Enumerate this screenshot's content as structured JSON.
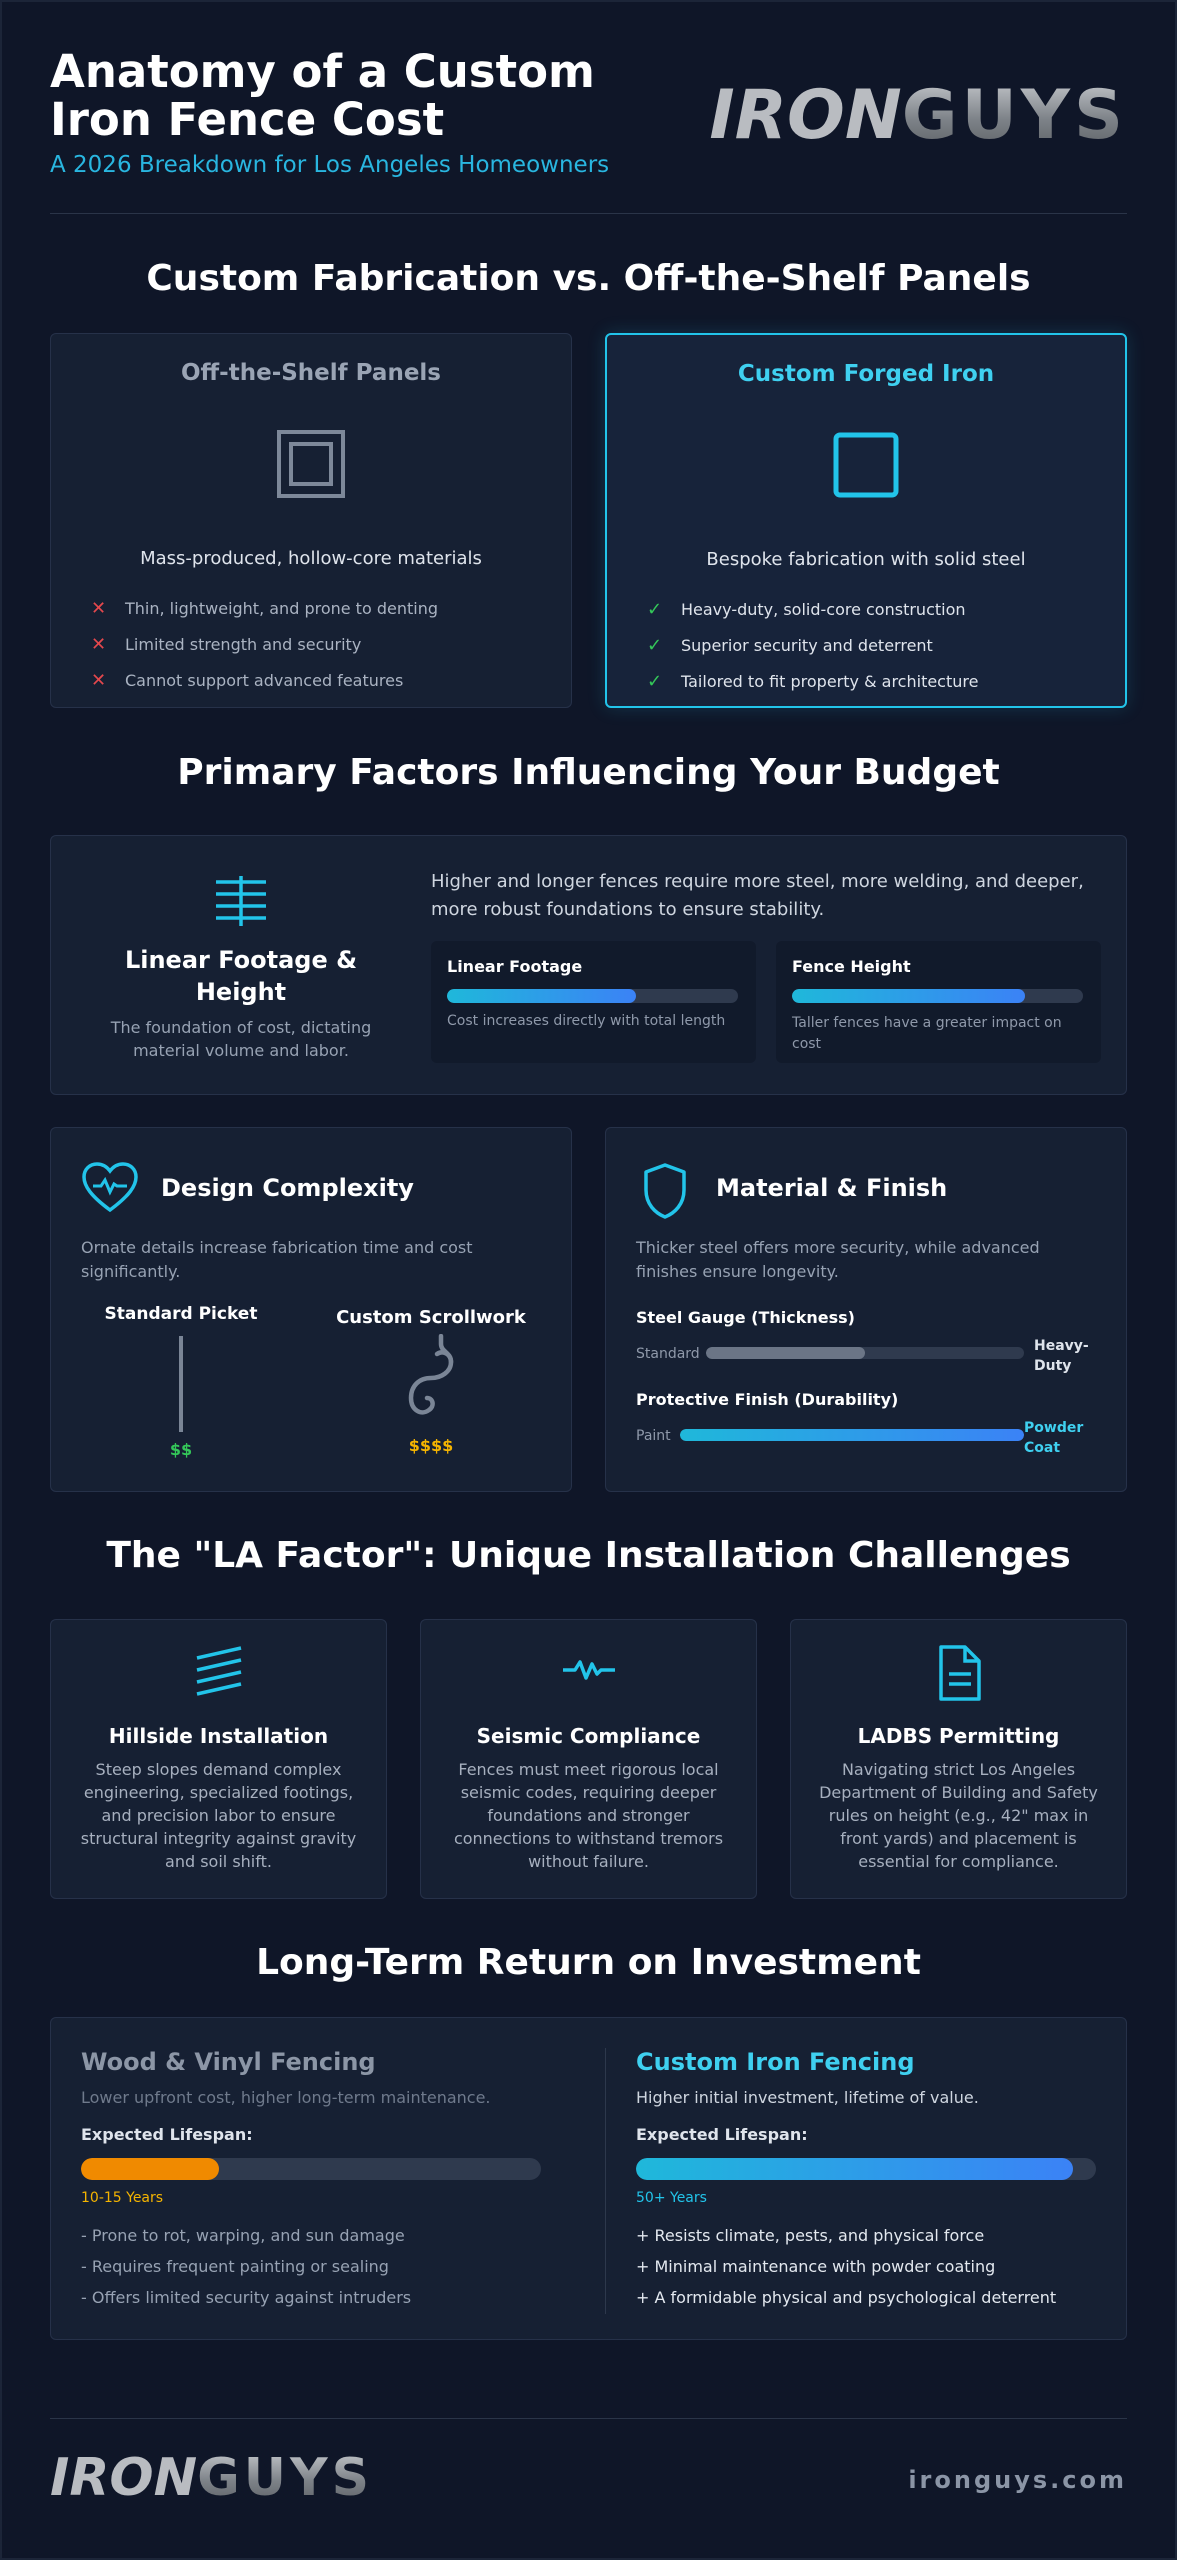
{
  "header": {
    "title_line1": "Anatomy of a Custom",
    "title_line2": "Iron Fence Cost",
    "subtitle": "A 2026 Breakdown for Los Angeles Homeowners",
    "logo_part1": "IRON",
    "logo_part2": "GUYS"
  },
  "comparison": {
    "title": "Custom Fabrication vs. Off-the-Shelf Panels",
    "off_shelf": {
      "title": "Off-the-Shelf Panels",
      "description": "Mass-produced, hollow-core materials",
      "items": [
        "Thin, lightweight, and prone to denting",
        "Limited strength and security",
        "Cannot support advanced features"
      ]
    },
    "custom": {
      "title": "Custom Forged Iron",
      "description": "Bespoke fabrication with solid steel",
      "items": [
        "Heavy-duty, solid-core construction",
        "Superior security and deterrent",
        "Tailored to fit property & architecture"
      ]
    }
  },
  "factors": {
    "title": "Primary Factors Influencing Your Budget",
    "footage": {
      "title": "Linear Footage & Height",
      "subtitle": "The foundation of cost, dictating material volume and labor.",
      "description": "Higher and longer fences require more steel, more welding, and deeper, more robust foundations to ensure stability.",
      "linear": {
        "label": "Linear Footage",
        "level": 0.65,
        "note": "Cost increases directly with total length"
      },
      "height": {
        "label": "Fence Height",
        "level": 0.8,
        "note": "Taller fences have a greater impact on cost"
      }
    },
    "design": {
      "title": "Design Complexity",
      "description": "Ornate details increase fabrication time and cost significantly.",
      "standard_label": "Standard Picket",
      "standard_price": "$$",
      "scroll_label": "Custom Scrollwork",
      "scroll_price": "$$$$"
    },
    "material": {
      "title": "Material & Finish",
      "description": "Thicker steel offers more security, while advanced finishes ensure longevity.",
      "gauge_label": "Steel Gauge (Thickness)",
      "gauge_min": "Standard",
      "gauge_max": "Heavy-Duty",
      "gauge_level": 0.5,
      "finish_label": "Protective Finish (Durability)",
      "finish_min": "Paint",
      "finish_max": "Powder Coat",
      "finish_level": 1.0
    }
  },
  "la_factor": {
    "title": "The \"LA Factor\": Unique Installation Challenges",
    "cards": [
      {
        "title": "Hillside Installation",
        "text": "Steep slopes demand complex engineering, specialized footings, and precision labor to ensure structural integrity against gravity and soil shift.",
        "icon": "slope-lines-icon"
      },
      {
        "title": "Seismic Compliance",
        "text": "Fences must meet rigorous local seismic codes, requiring deeper foundations and stronger connections to withstand tremors without failure.",
        "icon": "seismic-wave-icon"
      },
      {
        "title": "LADBS Permitting",
        "text": "Navigating strict Los Angeles Department of Building and Safety rules on height (e.g., 42\" max in front yards) and placement is essential for compliance.",
        "icon": "document-icon"
      }
    ]
  },
  "roi": {
    "title": "Long-Term Return on Investment",
    "wood": {
      "title": "Wood & Vinyl Fencing",
      "subtitle": "Lower upfront cost, higher long-term maintenance.",
      "lifespan_label": "Expected Lifespan:",
      "lifespan_value": "10-15 Years",
      "lifespan_level": 0.3,
      "items": [
        "- Prone to rot, warping, and sun damage",
        "- Requires frequent painting or sealing",
        "- Offers limited security against intruders"
      ]
    },
    "iron": {
      "title": "Custom Iron Fencing",
      "subtitle": "Higher initial investment, lifetime of value.",
      "lifespan_label": "Expected Lifespan:",
      "lifespan_value": "50+ Years",
      "lifespan_level": 0.95,
      "items": [
        "+ Resists climate, pests, and physical force",
        "+ Minimal maintenance with powder coating",
        "+ A formidable physical and psychological deterrent"
      ]
    }
  },
  "footer": {
    "site": "ironguys.com",
    "logo_part1": "IRON",
    "logo_part2": "GUYS"
  },
  "colors": {
    "accent": "#22c4ea",
    "good": "#34c759",
    "bad": "#e5484d",
    "gold": "#f5b400",
    "orange": "#f08a00"
  }
}
